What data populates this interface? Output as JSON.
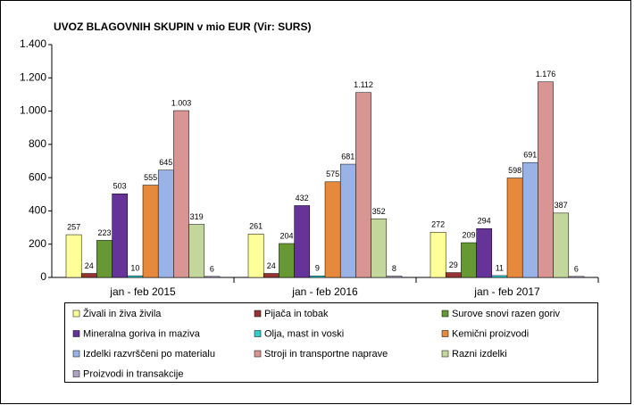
{
  "chart_data": {
    "type": "bar",
    "title": "UVOZ BLAGOVNIH SKUPIN v mio EUR (Vir: SURS)",
    "categories": [
      "jan - feb 2015",
      "jan - feb 2016",
      "jan - feb 2017"
    ],
    "series": [
      {
        "name": "Živali in živa živila",
        "color": "#ffff99",
        "values": [
          257,
          261,
          272
        ]
      },
      {
        "name": "Pijača in tobak",
        "color": "#993333",
        "values": [
          24,
          24,
          29
        ]
      },
      {
        "name": "Surove snovi razen goriv",
        "color": "#669933",
        "values": [
          223,
          204,
          209
        ]
      },
      {
        "name": "Mineralna goriva in maziva",
        "color": "#663399",
        "values": [
          503,
          432,
          294
        ]
      },
      {
        "name": "Olja, mast in voski",
        "color": "#33cccc",
        "values": [
          10,
          9,
          11
        ]
      },
      {
        "name": "Kemični proizvodi",
        "color": "#e6893a",
        "values": [
          555,
          575,
          598
        ]
      },
      {
        "name": "Izdelki razvrščeni po materialu",
        "color": "#99b3e6",
        "values": [
          645,
          681,
          691
        ]
      },
      {
        "name": "Stroji in transportne naprave",
        "color": "#d99494",
        "values": [
          1003,
          1112,
          1176
        ],
        "value_labels": [
          "1.003",
          "1.112",
          "1.176"
        ]
      },
      {
        "name": "Razni izdelki",
        "color": "#c3d69b",
        "values": [
          319,
          352,
          387
        ]
      },
      {
        "name": "Proizvodi in transakcije",
        "color": "#b3a2c7",
        "values": [
          6,
          8,
          6
        ]
      }
    ],
    "ylim": [
      0,
      1400
    ],
    "yticks": [
      0,
      200,
      400,
      600,
      800,
      {
        "value": 1000,
        "label": "1.000"
      },
      {
        "value": 1200,
        "label": "1.200"
      },
      {
        "value": 1400,
        "label": "1.400"
      }
    ],
    "grid": false,
    "legend": "bottom"
  }
}
